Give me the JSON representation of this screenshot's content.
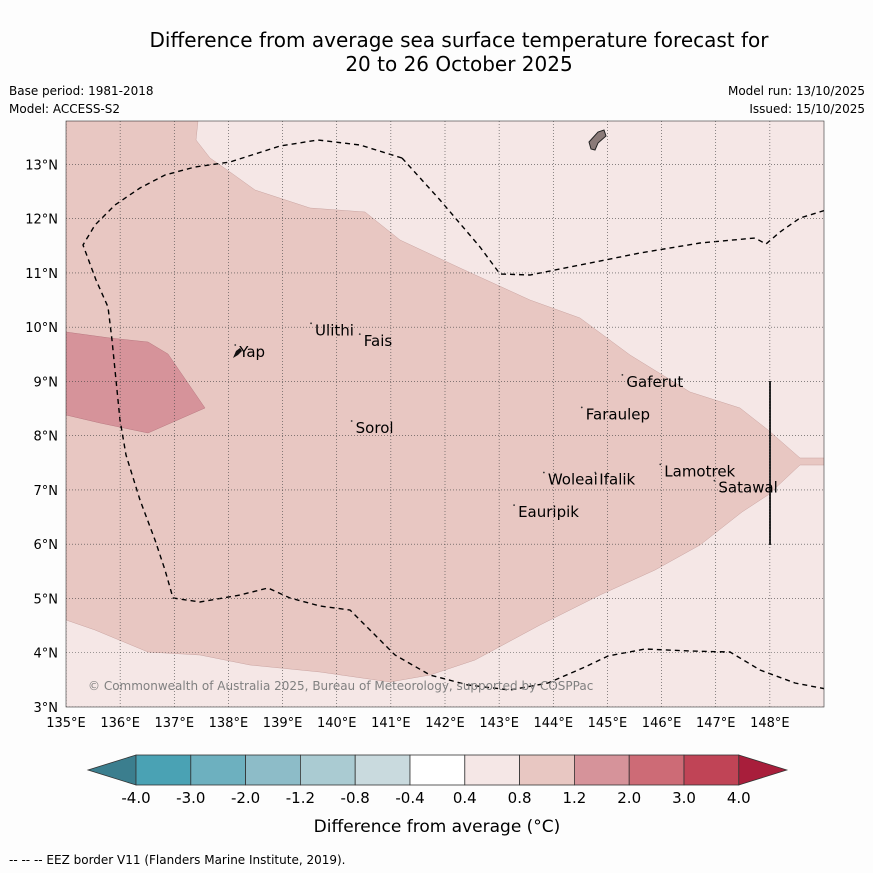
{
  "title": {
    "line1": "Difference from average sea surface temperature forecast for",
    "line2": "20 to 26 October 2025"
  },
  "meta": {
    "base_period": "Base period: 1981-2018",
    "model": "Model: ACCESS-S2",
    "model_run": "Model run: 13/10/2025",
    "issued": "Issued: 15/10/2025"
  },
  "map": {
    "lon_range": [
      135,
      149
    ],
    "lat_range": [
      3,
      13.8
    ],
    "lon_ticks": [
      "135°E",
      "136°E",
      "137°E",
      "138°E",
      "139°E",
      "140°E",
      "141°E",
      "142°E",
      "143°E",
      "144°E",
      "145°E",
      "146°E",
      "147°E",
      "148°E"
    ],
    "lat_ticks": [
      "3°N",
      "4°N",
      "5°N",
      "6°N",
      "7°N",
      "8°N",
      "9°N",
      "10°N",
      "11°N",
      "12°N",
      "13°N"
    ],
    "copyright": "© Commonwealth of Australia 2025, Bureau of Meteorology, supported by COSPPac",
    "places": [
      {
        "name": "Yap",
        "lon": 138.2,
        "lat": 9.45
      },
      {
        "name": "Ulithi",
        "lon": 139.6,
        "lat": 9.85
      },
      {
        "name": "Fais",
        "lon": 140.5,
        "lat": 9.65
      },
      {
        "name": "Gaferut",
        "lon": 145.35,
        "lat": 8.9
      },
      {
        "name": "Faraulep",
        "lon": 144.6,
        "lat": 8.3
      },
      {
        "name": "Sorol",
        "lon": 140.35,
        "lat": 8.05
      },
      {
        "name": "Woleai",
        "lon": 143.9,
        "lat": 7.1
      },
      {
        "name": "Ifalik",
        "lon": 144.85,
        "lat": 7.1
      },
      {
        "name": "Lamotrek",
        "lon": 146.05,
        "lat": 7.25
      },
      {
        "name": "Satawal",
        "lon": 147.05,
        "lat": 6.95
      },
      {
        "name": "Eauripik",
        "lon": 143.35,
        "lat": 6.5
      }
    ]
  },
  "colorbar": {
    "ticks": [
      "-4.0",
      "-3.0",
      "-2.0",
      "-1.2",
      "-0.8",
      "-0.4",
      "0.4",
      "0.8",
      "1.2",
      "2.0",
      "3.0",
      "4.0"
    ],
    "colors": [
      "#3b7e8e",
      "#4aa2b4",
      "#6db0bf",
      "#8dbcc8",
      "#aacbd2",
      "#c9dade",
      "#ffffff",
      "#f5e7e6",
      "#e8c7c2",
      "#d6939a",
      "#cd6b76",
      "#c04456",
      "#a81e3b"
    ],
    "label": "Difference from average (°C)"
  },
  "footnote": "--  --  -- EEZ border V11 (Flanders Marine Institute, 2019)."
}
